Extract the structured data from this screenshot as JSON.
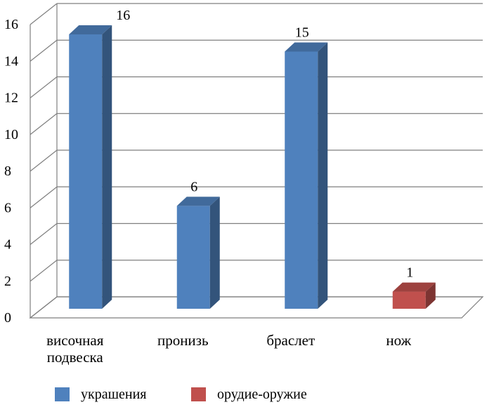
{
  "chart_data": {
    "type": "bar",
    "style": "3d-column",
    "categories": [
      "височная подвеска",
      "пронизь",
      "браслет",
      "нож"
    ],
    "series": [
      {
        "name": "украшения",
        "values": [
          16,
          6,
          15,
          null
        ],
        "color": "#4f81bd"
      },
      {
        "name": "орудие-оружие",
        "values": [
          null,
          null,
          null,
          1
        ],
        "color": "#c0504d"
      }
    ],
    "data_labels": [
      "16",
      "6",
      "15",
      "1"
    ],
    "ylim": [
      0,
      16
    ],
    "yticks": [
      0,
      2,
      4,
      6,
      8,
      10,
      12,
      14,
      16
    ],
    "grid": true,
    "legend_position": "bottom",
    "title": "",
    "xlabel": "",
    "ylabel": ""
  }
}
